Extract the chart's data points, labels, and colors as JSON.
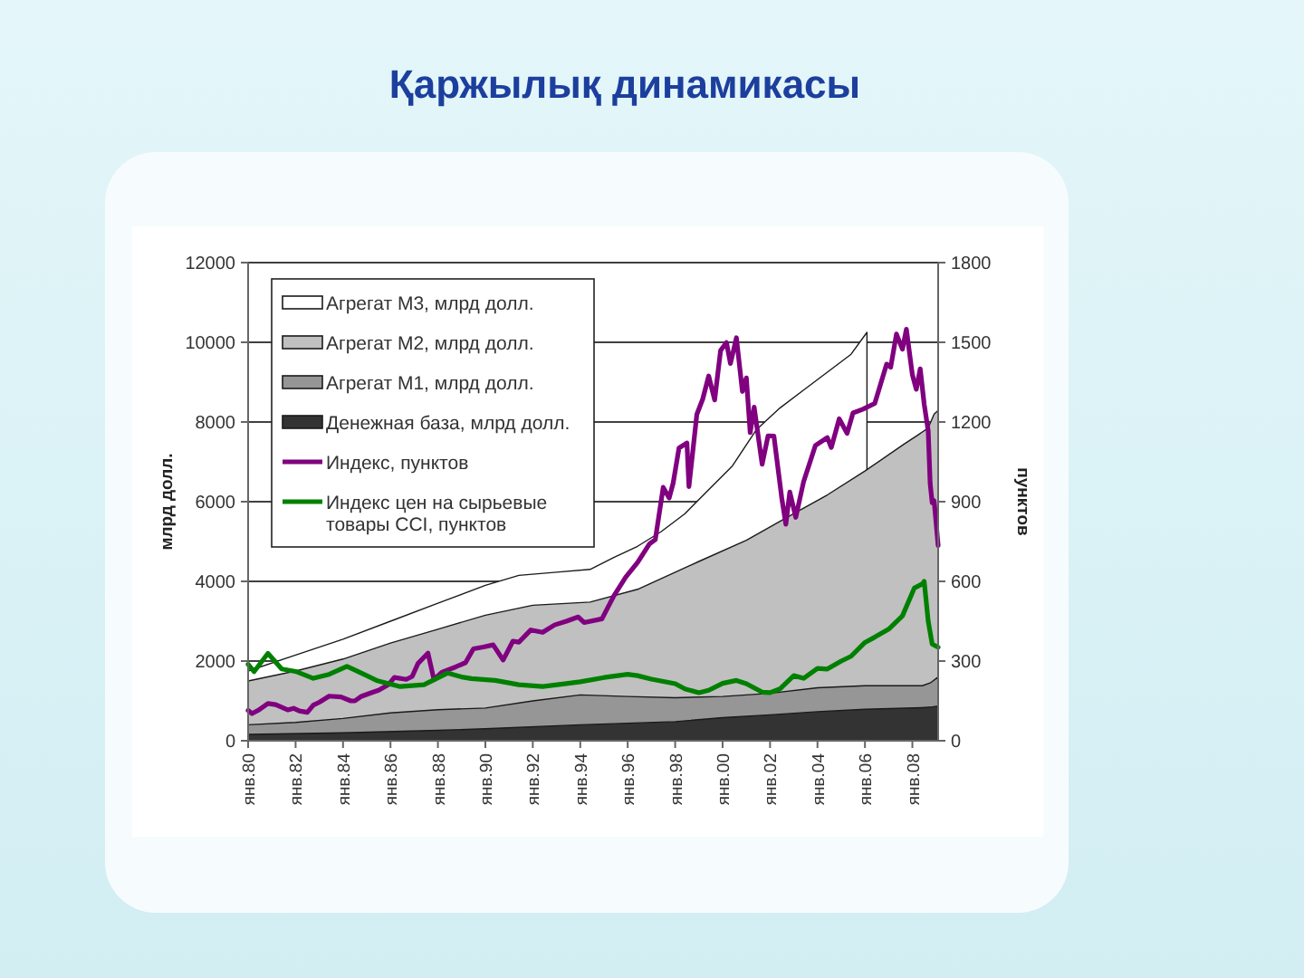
{
  "chart_data": {
    "type": "area",
    "title": "Қаржылық динамикасы",
    "ylabel": "млрд долл.",
    "y2label": "пунктов",
    "xlim": [
      "1980-01",
      "2009-02"
    ],
    "xticks": [
      {
        "value": "1980-01",
        "label": "янв.80"
      },
      {
        "value": "1982-01",
        "label": "янв.82"
      },
      {
        "value": "1984-01",
        "label": "янв.84"
      },
      {
        "value": "1986-01",
        "label": "янв.86"
      },
      {
        "value": "1988-01",
        "label": "янв.88"
      },
      {
        "value": "1990-01",
        "label": "янв.90"
      },
      {
        "value": "1992-01",
        "label": "янв.92"
      },
      {
        "value": "1994-01",
        "label": "янв.94"
      },
      {
        "value": "1996-01",
        "label": "янв.96"
      },
      {
        "value": "1998-01",
        "label": "янв.98"
      },
      {
        "value": "2000-01",
        "label": "янв.00"
      },
      {
        "value": "2002-01",
        "label": "янв.02"
      },
      {
        "value": "2004-01",
        "label": "янв.04"
      },
      {
        "value": "2006-01",
        "label": "янв.06"
      },
      {
        "value": "2008-01",
        "label": "янв.08"
      }
    ],
    "ylim": [
      0,
      12000
    ],
    "yticks": [
      0,
      2000,
      4000,
      6000,
      8000,
      10000,
      12000
    ],
    "y2lim": [
      0,
      1800
    ],
    "y2ticks": [
      0,
      300,
      600,
      900,
      1200,
      1500,
      1800
    ],
    "grid": "y",
    "legend": "top left",
    "series": [
      {
        "name": "Агрегат М3, млрд долл.",
        "color": "#ffffff",
        "x": [
          "1980-01",
          "1982-01",
          "1984-01",
          "1986-01",
          "1988-01",
          "1990-01",
          "1991-06",
          "1993-01",
          "1994-06",
          "1995-06",
          "1996-06",
          "1997-06",
          "1998-06",
          "1999-06",
          "2000-06",
          "2001-06",
          "2002-06",
          "2003-06",
          "2004-06",
          "2005-06",
          "2006-02"
        ],
        "values": [
          1750,
          2150,
          2550,
          3000,
          3450,
          3900,
          4150,
          4230,
          4300,
          4600,
          4880,
          5250,
          5700,
          6300,
          6900,
          7800,
          8350,
          8800,
          9250,
          9700,
          10250
        ]
      },
      {
        "name": "Агрегат М2, млрд долл.",
        "color": "#c0c0c0",
        "x": [
          "1980-01",
          "1982-01",
          "1984-01",
          "1986-01",
          "1988-01",
          "1990-01",
          "1992-01",
          "1994-06",
          "1996-06",
          "1999-01",
          "2001-01",
          "2003-01",
          "2004-06",
          "2006-01",
          "2007-09",
          "2008-04",
          "2008-09",
          "2008-12",
          "2009-02"
        ],
        "values": [
          1500,
          1750,
          2050,
          2450,
          2800,
          3150,
          3400,
          3480,
          3800,
          4500,
          5030,
          5700,
          6170,
          6770,
          7450,
          7680,
          7850,
          8200,
          8290
        ]
      },
      {
        "name": "Агрегат М1, млрд долл.",
        "color": "#969696",
        "x": [
          "1980-01",
          "1982-01",
          "1984-01",
          "1986-01",
          "1988-01",
          "1990-01",
          "1992-01",
          "1994-01",
          "1996-01",
          "1998-01",
          "2000-01",
          "2002-01",
          "2004-01",
          "2006-01",
          "2008-06",
          "2008-10",
          "2009-02"
        ],
        "values": [
          400,
          460,
          560,
          700,
          780,
          820,
          1000,
          1150,
          1110,
          1080,
          1110,
          1190,
          1330,
          1380,
          1380,
          1450,
          1600
        ]
      },
      {
        "name": "Денежная база, млрд долл.",
        "color": "#333333",
        "x": [
          "1980-01",
          "1984-01",
          "1988-01",
          "1990-01",
          "1994-01",
          "1998-01",
          "2000-01",
          "2002-01",
          "2004-01",
          "2006-01",
          "2008-06",
          "2008-11",
          "2009-02"
        ],
        "values": [
          160,
          200,
          260,
          300,
          400,
          480,
          580,
          650,
          730,
          790,
          830,
          850,
          870
        ]
      },
      {
        "name": "Индекс, пунктов",
        "type": "line",
        "axis": "y2",
        "color": "#800080",
        "x": [
          "1980-01",
          "1980-03",
          "1980-06",
          "1980-11",
          "1981-03",
          "1981-09",
          "1981-12",
          "1982-03",
          "1982-07",
          "1982-10",
          "1983-01",
          "1983-06",
          "1983-12",
          "1984-05",
          "1984-07",
          "1984-10",
          "1985-03",
          "1985-07",
          "1985-12",
          "1986-03",
          "1986-09",
          "1986-12",
          "1987-03",
          "1987-08",
          "1987-11",
          "1988-03",
          "1988-10",
          "1989-03",
          "1989-07",
          "1989-12",
          "1990-05",
          "1990-10",
          "1991-03",
          "1991-06",
          "1991-12",
          "1992-06",
          "1992-12",
          "1993-06",
          "1993-12",
          "1994-03",
          "1994-12",
          "1995-06",
          "1995-12",
          "1996-06",
          "1996-12",
          "1997-03",
          "1997-07",
          "1997-10",
          "1997-12",
          "1998-03",
          "1998-07",
          "1998-08",
          "1998-12",
          "1999-03",
          "1999-06",
          "1999-09",
          "1999-12",
          "2000-03",
          "2000-05",
          "2000-08",
          "2000-11",
          "2001-01",
          "2001-03",
          "2001-05",
          "2001-09",
          "2001-12",
          "2002-03",
          "2002-07",
          "2002-09",
          "2002-11",
          "2003-02",
          "2003-06",
          "2003-12",
          "2004-06",
          "2004-08",
          "2004-12",
          "2005-04",
          "2005-07",
          "2005-12",
          "2006-06",
          "2006-12",
          "2007-02",
          "2007-05",
          "2007-08",
          "2007-10",
          "2008-01",
          "2008-03",
          "2008-05",
          "2008-07",
          "2008-09",
          "2008-10",
          "2008-11",
          "2008-12",
          "2009-02"
        ],
        "values": [
          114,
          102,
          114,
          140,
          136,
          116,
          122,
          112,
          107,
          134,
          145,
          168,
          165,
          150,
          150,
          166,
          180,
          190,
          211,
          238,
          231,
          242,
          291,
          330,
          230,
          258,
          278,
          294,
          346,
          353,
          361,
          304,
          375,
          371,
          417,
          408,
          436,
          450,
          466,
          445,
          459,
          545,
          616,
          671,
          741,
          757,
          954,
          914,
          970,
          1102,
          1121,
          957,
          1229,
          1286,
          1373,
          1283,
          1469,
          1499,
          1420,
          1517,
          1315,
          1366,
          1160,
          1256,
          1041,
          1148,
          1147,
          912,
          815,
          936,
          841,
          975,
          1112,
          1141,
          1104,
          1212,
          1157,
          1234,
          1248,
          1270,
          1418,
          1406,
          1531,
          1474,
          1549,
          1378,
          1323,
          1400,
          1267,
          1166,
          968,
          896,
          903,
          735
        ]
      },
      {
        "name": "Индекс цен на сырьевые товары CCI, пунктов",
        "type": "line",
        "axis": "y2",
        "color": "#008000",
        "x": [
          "1980-01",
          "1980-04",
          "1980-11",
          "1981-06",
          "1982-01",
          "1982-10",
          "1983-06",
          "1984-03",
          "1984-06",
          "1985-01",
          "1985-06",
          "1986-06",
          "1987-06",
          "1988-06",
          "1989-01",
          "1989-06",
          "1990-06",
          "1991-06",
          "1992-06",
          "1993-06",
          "1994-01",
          "1995-01",
          "1996-01",
          "1996-06",
          "1997-01",
          "1998-01",
          "1998-06",
          "1999-01",
          "1999-06",
          "2000-01",
          "2000-08",
          "2001-01",
          "2001-09",
          "2002-01",
          "2002-06",
          "2003-01",
          "2003-06",
          "2004-01",
          "2004-06",
          "2005-01",
          "2005-06",
          "2006-01",
          "2006-06",
          "2007-01",
          "2007-08",
          "2008-02",
          "2008-06",
          "2008-07",
          "2008-09",
          "2008-11",
          "2009-02"
        ],
        "values": [
          288,
          260,
          329,
          270,
          261,
          235,
          250,
          280,
          270,
          245,
          227,
          204,
          211,
          255,
          240,
          234,
          227,
          211,
          204,
          215,
          222,
          238,
          250,
          245,
          232,
          215,
          195,
          181,
          190,
          216,
          227,
          215,
          183,
          181,
          195,
          245,
          235,
          272,
          270,
          300,
          318,
          370,
          390,
          420,
          470,
          575,
          590,
          600,
          450,
          364,
          352
        ]
      }
    ]
  }
}
